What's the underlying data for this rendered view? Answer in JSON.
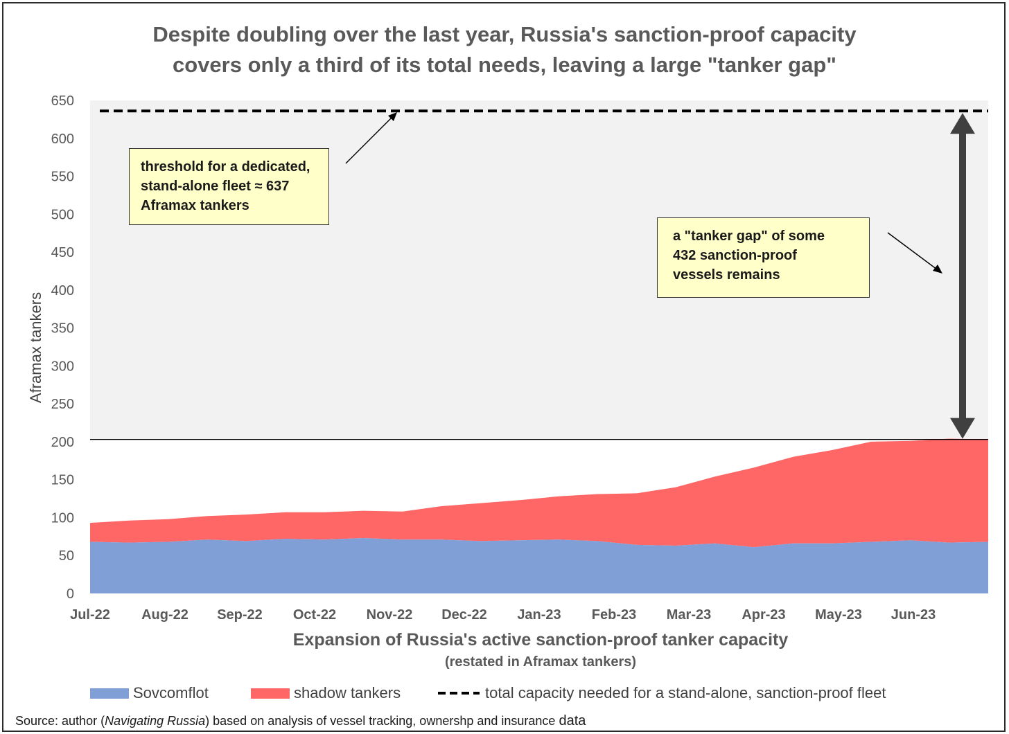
{
  "chart_data": {
    "type": "area",
    "title_lines": [
      "Despite doubling over the last year, Russia's sanction-proof capacity",
      "covers only a third of its total needs, leaving a large \"tanker gap\""
    ],
    "ylabel": "Aframax tankers",
    "xlabel": "Expansion of Russia's active sanction-proof tanker capacity",
    "xlabel_sub": "(restated in Aframax tankers)",
    "ylim": [
      0,
      650
    ],
    "yticks": [
      "0",
      "50",
      "100",
      "150",
      "200",
      "250",
      "300",
      "350",
      "400",
      "450",
      "500",
      "550",
      "600",
      "650"
    ],
    "xtick_labels": [
      "Jul-22",
      "Aug-22",
      "Sep-22",
      "Oct-22",
      "Nov-22",
      "Dec-22",
      "Jan-23",
      "Feb-23",
      "Mar-23",
      "Apr-23",
      "May-23",
      "Jun-23"
    ],
    "x": [
      0,
      0.5,
      1,
      1.5,
      2,
      2.5,
      3,
      3.5,
      4,
      4.5,
      5,
      5.5,
      6,
      6.5,
      7,
      7.5,
      8,
      8.5,
      9,
      9.5,
      10,
      10.5,
      11,
      11.5
    ],
    "series": [
      {
        "name": "Sovcomflot",
        "color": "#7f9fd6",
        "values": [
          68,
          67,
          68,
          71,
          69,
          72,
          71,
          73,
          71,
          71,
          69,
          70,
          71,
          69,
          64,
          63,
          66,
          61,
          66,
          66,
          68,
          70,
          67,
          68
        ]
      },
      {
        "name": "shadow tankers",
        "color": "#ff6666",
        "values": [
          25,
          29,
          30,
          31,
          35,
          35,
          36,
          36,
          37,
          44,
          50,
          53,
          57,
          62,
          68,
          77,
          88,
          105,
          114,
          123,
          132,
          131,
          137,
          135
        ]
      }
    ],
    "total_line": {
      "name": "total capacity needed for a stand-alone, sanction-proof fleet",
      "value": 637
    },
    "current_total_line": 203,
    "shade_color": "#f2f2f2",
    "annotations": {
      "threshold": [
        "threshold for a dedicated,",
        "stand-alone fleet ≈ 637",
        "Aframax tankers"
      ],
      "gap": [
        "a \"tanker gap\" of some",
        "432 sanction-proof",
        "vessels remains"
      ]
    },
    "legend": {
      "position": "bottom"
    }
  },
  "source": {
    "prefix": "Source: author (",
    "italic": "Navigating Russia",
    "suffix": ") based on analysis of vessel tracking, ownershp and insurance ",
    "last": "data"
  }
}
